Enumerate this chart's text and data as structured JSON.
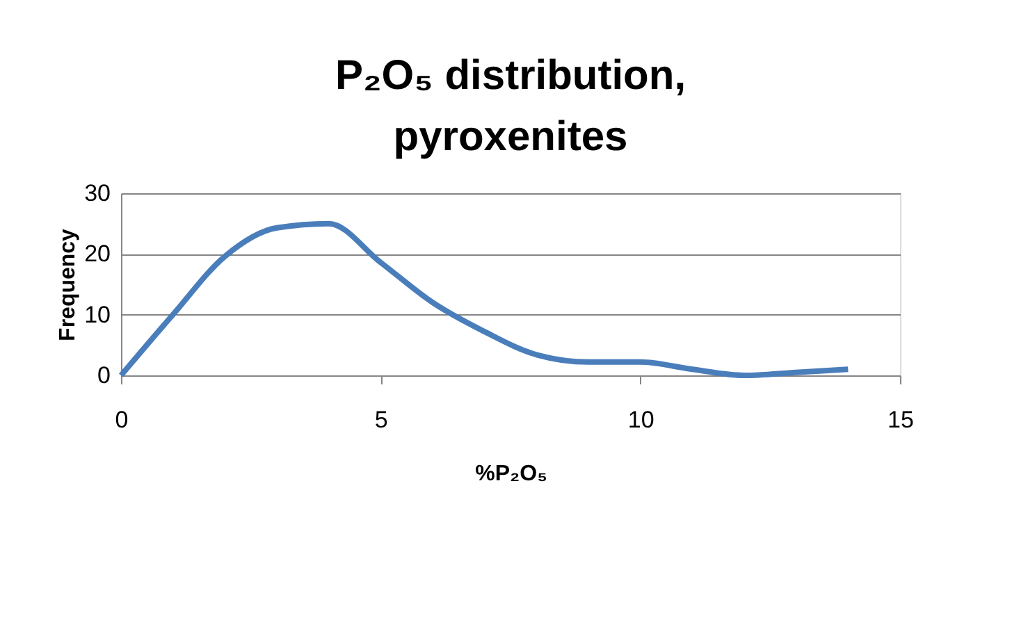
{
  "chart_data": {
    "type": "line",
    "title": "P₂O₅ distribution, pyroxenites",
    "xlabel": "%P₂O₅",
    "ylabel": "Frequency",
    "x": [
      0,
      1,
      2,
      3,
      4,
      5,
      6,
      7,
      8,
      9,
      10,
      11,
      12,
      13,
      14
    ],
    "series": [
      {
        "color": "#4a7ebb",
        "values": [
          0,
          10,
          19.6,
          24.3,
          25,
          18.6,
          12,
          7.2,
          3.4,
          2.2,
          2.2,
          1,
          0,
          0.5,
          1
        ]
      }
    ],
    "xlim": [
      0,
      15
    ],
    "xticks": [
      0,
      5,
      10,
      15
    ],
    "ylim": [
      0,
      30
    ],
    "yticks": [
      0,
      10,
      20,
      30
    ],
    "grid": "y",
    "marker": "none",
    "line_style": "solid"
  }
}
